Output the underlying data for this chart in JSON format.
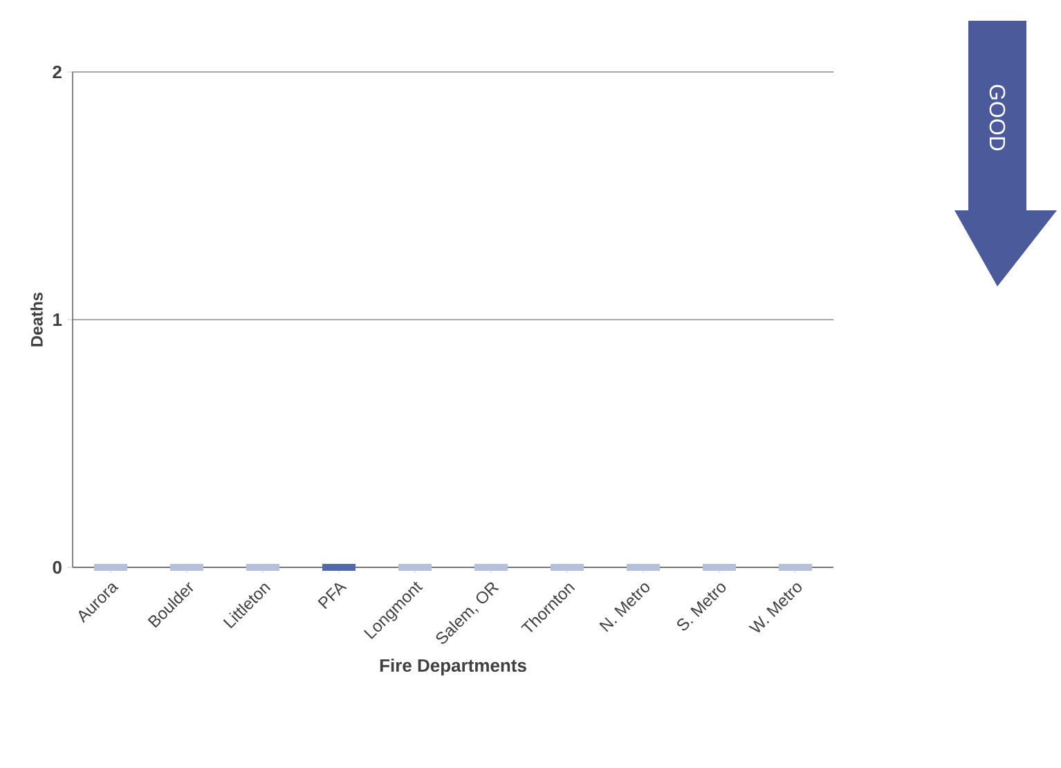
{
  "chart_data": {
    "type": "bar",
    "xlabel": "Fire Departments",
    "ylabel": "Deaths",
    "categories": [
      "Aurora",
      "Boulder",
      "Littleton",
      "PFA",
      "Longmont",
      "Salem, OR",
      "Thornton",
      "N. Metro",
      "S. Metro",
      "W. Metro"
    ],
    "values": [
      0,
      0,
      0,
      0,
      0,
      0,
      0,
      0,
      0,
      0
    ],
    "colors": [
      "#b4c0dc",
      "#b4c0dc",
      "#b4c0dc",
      "#4f6aa8",
      "#b4c0dc",
      "#b4c0dc",
      "#b4c0dc",
      "#b4c0dc",
      "#b4c0dc",
      "#b4c0dc"
    ],
    "ylim": [
      0,
      2
    ],
    "yticks": [
      0,
      1,
      2
    ],
    "grid": "y",
    "annotations": [
      "GOOD"
    ]
  }
}
